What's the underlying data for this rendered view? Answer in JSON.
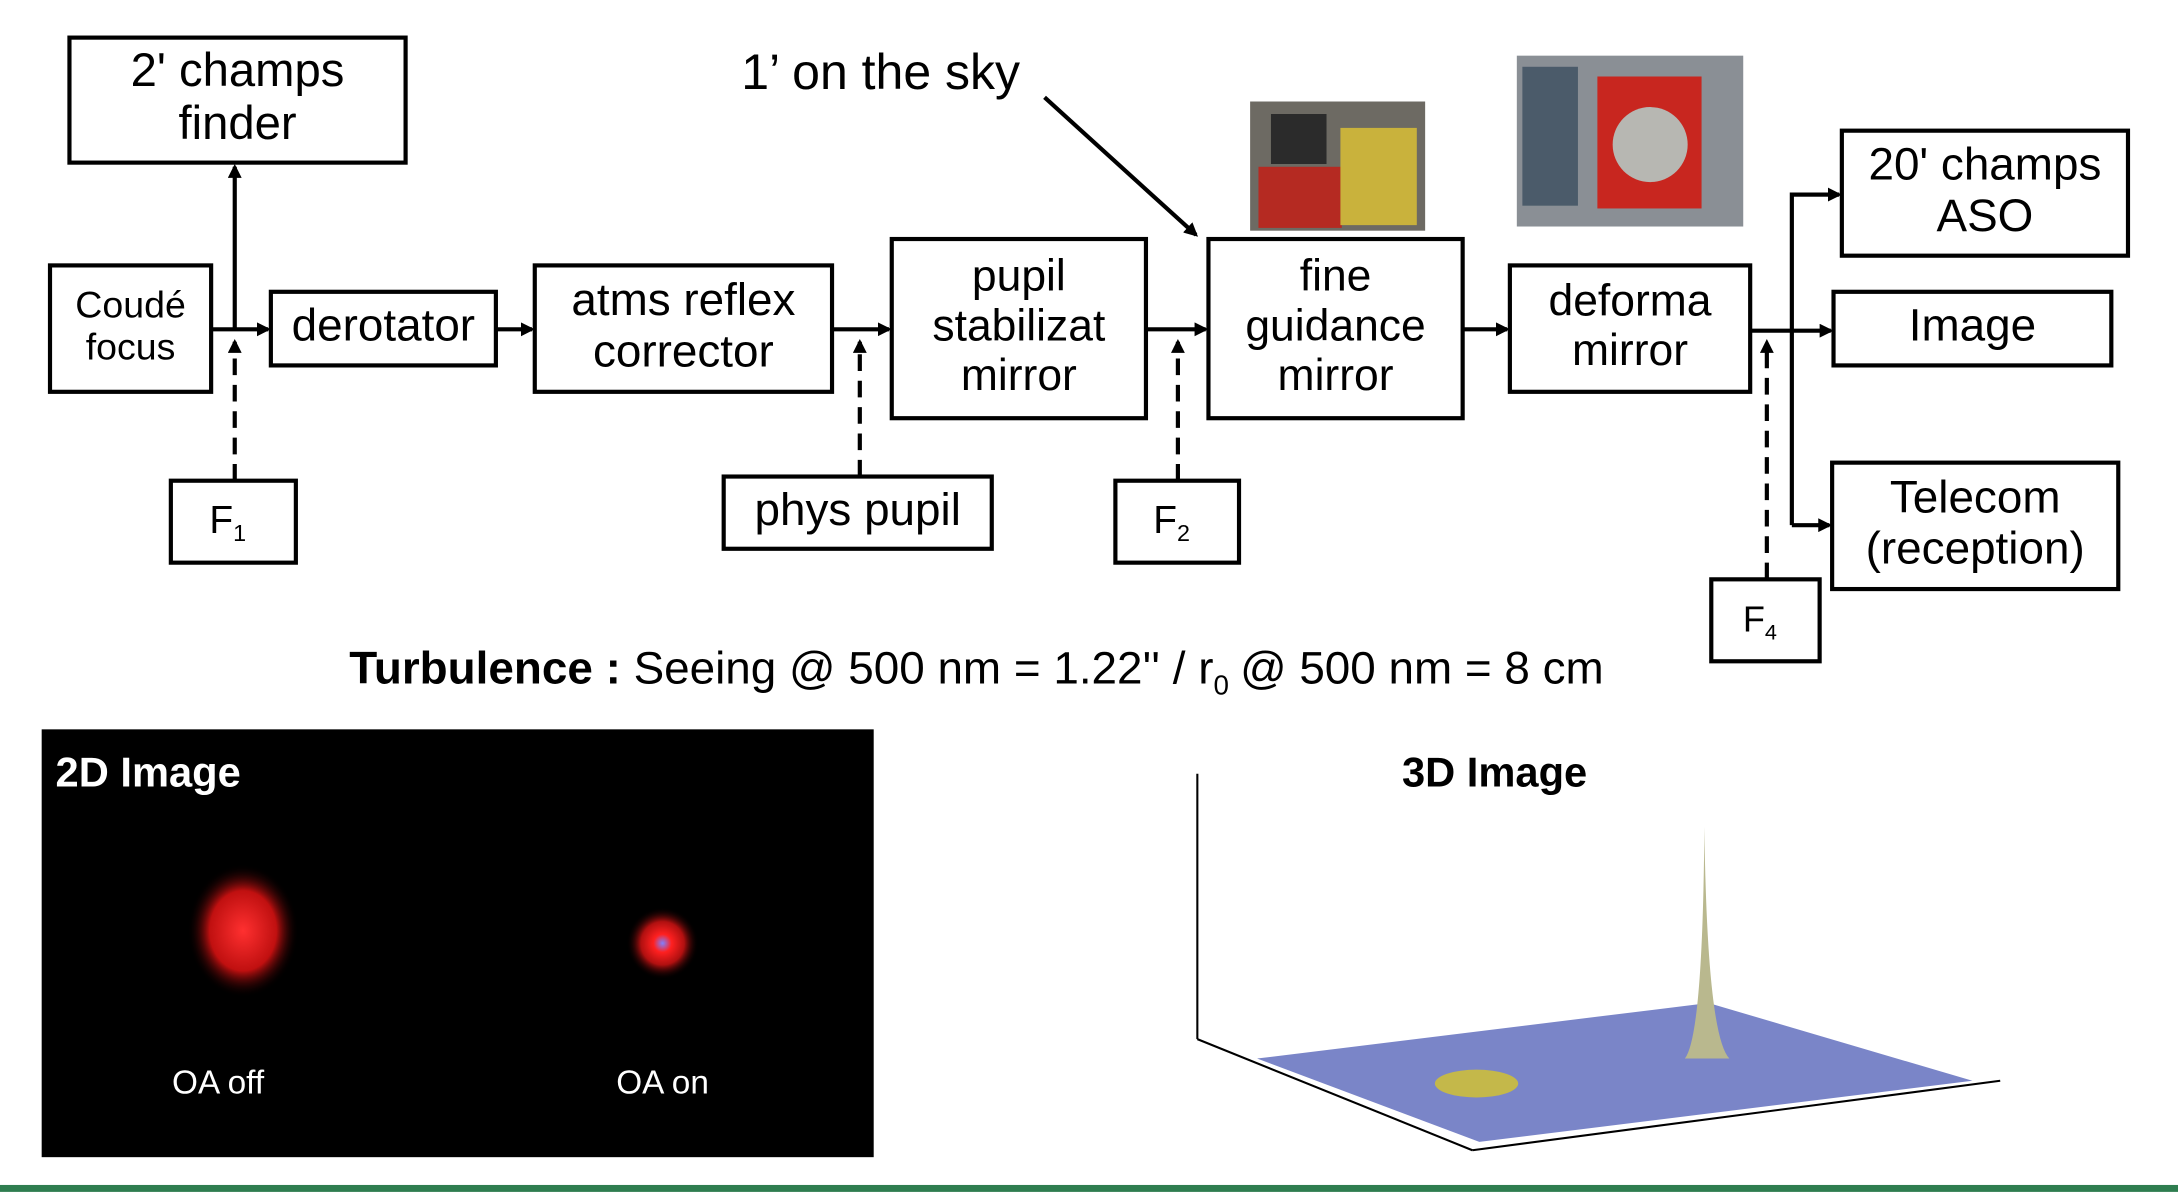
{
  "diagram": {
    "annotation": "1’ on the sky",
    "nodes": [
      {
        "lines": [
          "2' champs",
          "finder"
        ]
      },
      {
        "lines": [
          "Coudé",
          "focus"
        ]
      },
      {
        "lines": [
          "derotator"
        ]
      },
      {
        "lines": [
          "atms reflex",
          "corrector"
        ]
      },
      {
        "lines": [
          "pupil",
          "stabilizat",
          "mirror"
        ]
      },
      {
        "lines": [
          "fine",
          "guidance",
          "mirror"
        ]
      },
      {
        "lines": [
          "deforma",
          "mirror"
        ]
      },
      {
        "lines": [
          "20' champs",
          "ASO"
        ]
      },
      {
        "lines": [
          "Image"
        ]
      },
      {
        "lines": [
          "Telecom",
          "(reception)"
        ]
      },
      {
        "main": "F",
        "sub": "1"
      },
      {
        "lines": [
          "phys pupil"
        ]
      },
      {
        "main": "F",
        "sub": "2"
      },
      {
        "main": "F",
        "sub": "4"
      }
    ],
    "turbulence": {
      "label": "Turbulence :",
      "text": "Seeing @ 500 nm = 1.22'' / r",
      "sub": "0",
      "rest": "@ 500 nm = 8 cm"
    },
    "panel_2d": {
      "title": "2D Image",
      "left": "OA off",
      "right": "OA on"
    },
    "panel_3d": {
      "title": "3D Image"
    }
  }
}
